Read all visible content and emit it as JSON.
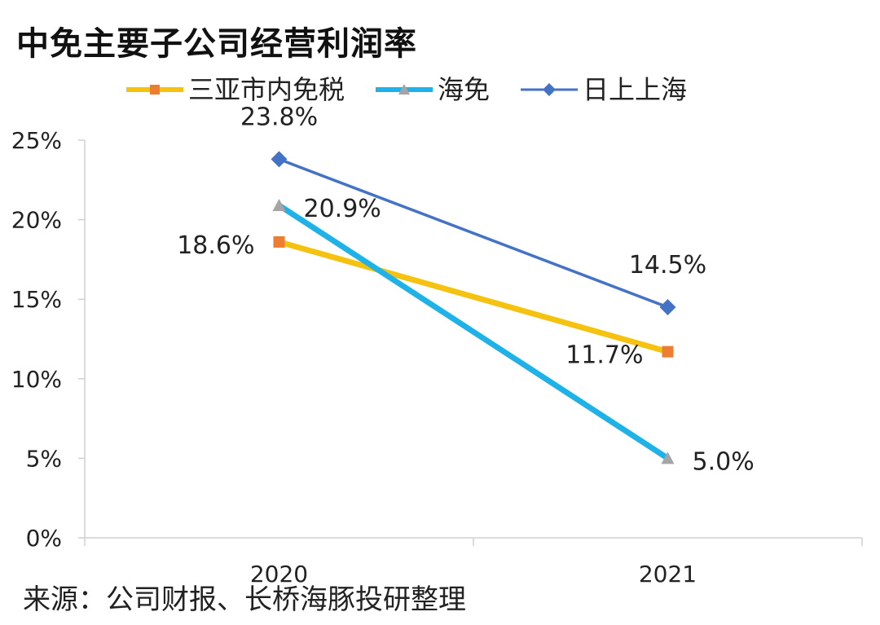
{
  "title": "中免主要子公司经营利润率",
  "source": "来源：公司财报、长桥海豚投研整理",
  "chart_data": {
    "type": "line",
    "title": "中免主要子公司经营利润率",
    "categories": [
      "2020",
      "2021"
    ],
    "yticks": [
      "0%",
      "5%",
      "10%",
      "15%",
      "20%",
      "25%"
    ],
    "ylim": [
      0,
      25
    ],
    "grid": false,
    "legend_position": "top",
    "series": [
      {
        "name": "三亚市内免税",
        "values": [
          18.6,
          11.7
        ],
        "labels": [
          "18.6%",
          "11.7%"
        ],
        "line_color": "#f5c20f",
        "marker": "square",
        "marker_color": "#ed7d31"
      },
      {
        "name": "海免",
        "values": [
          20.9,
          5.0
        ],
        "labels": [
          "20.9%",
          "5.0%"
        ],
        "line_color": "#1fb2e8",
        "marker": "triangle",
        "marker_color": "#a5a5a5"
      },
      {
        "name": "日上上海",
        "values": [
          23.8,
          14.5
        ],
        "labels": [
          "23.8%",
          "14.5%"
        ],
        "line_color": "#4472c4",
        "marker": "diamond",
        "marker_color": "#4472c4"
      }
    ]
  }
}
